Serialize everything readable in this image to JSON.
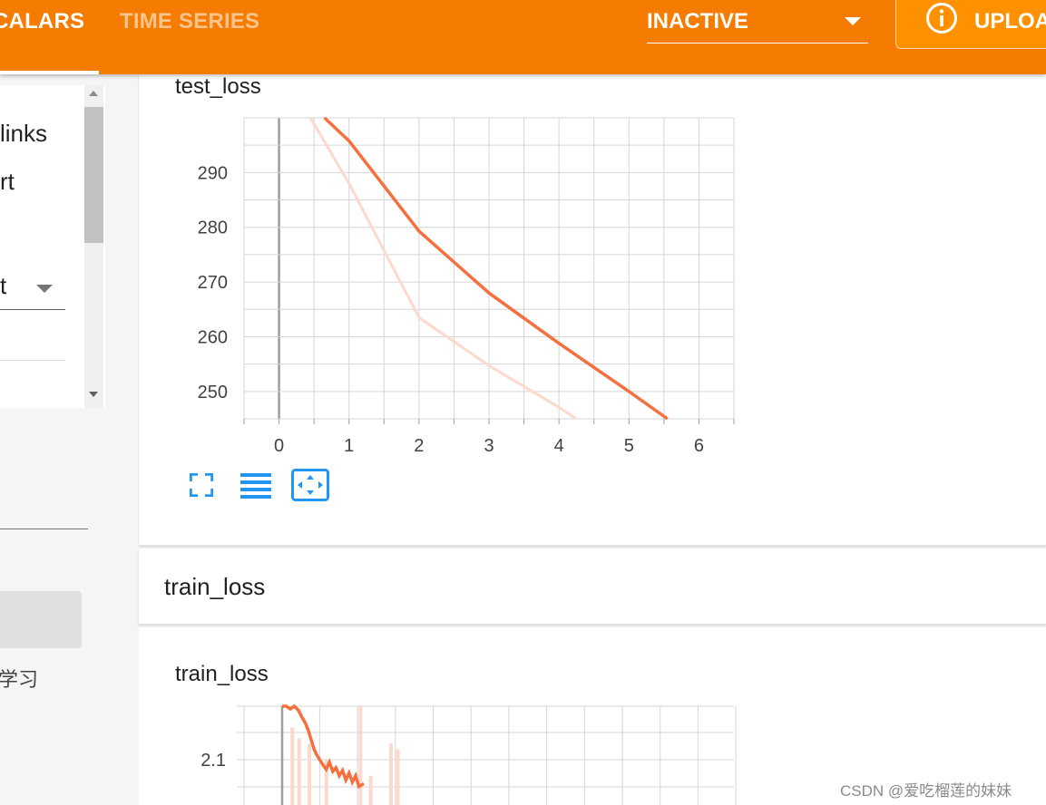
{
  "header": {
    "tabs": [
      {
        "label": "CALARS",
        "active": true
      },
      {
        "label": "TIME SERIES",
        "active": false
      }
    ],
    "inactive_dropdown": {
      "label": "INACTIVE"
    },
    "upload_button": {
      "label": "UPLOA",
      "icon": "info-icon"
    },
    "colors": {
      "bar": "#f57c00",
      "upload": "#ff9100",
      "text": "#ffffff"
    }
  },
  "sidebar": {
    "items": [
      {
        "label": "links"
      },
      {
        "label": "rt"
      }
    ],
    "select_value": "t",
    "caption": "学习"
  },
  "charts": {
    "test_loss": {
      "title": "test_loss"
    },
    "group": {
      "title": "train_loss"
    },
    "train_loss": {
      "title": "train_loss"
    }
  },
  "chart_data": [
    {
      "type": "line",
      "title": "test_loss",
      "xlim": [
        -0.5,
        6.5
      ],
      "ylim": [
        245,
        300
      ],
      "x_ticks": [
        0,
        1,
        2,
        3,
        4,
        5,
        6
      ],
      "y_ticks": [
        250,
        260,
        270,
        280,
        290
      ],
      "grid": true,
      "series": [
        {
          "style": "smoothed",
          "color": "#f4703f",
          "x": [
            0.65,
            1,
            2,
            3,
            4,
            5,
            5.55
          ],
          "y": [
            300,
            295.8,
            279.3,
            268,
            258.8,
            250,
            245
          ]
        },
        {
          "style": "raw",
          "color": "#fcd9cc",
          "x": [
            0.45,
            1,
            2,
            3,
            4,
            4.25
          ],
          "y": [
            300,
            288,
            263.5,
            254.7,
            247.1,
            245
          ]
        }
      ]
    },
    {
      "type": "line",
      "title": "train_loss",
      "ylim": [
        2.05,
        2.2
      ],
      "y_ticks": [
        2.1
      ],
      "grid": true,
      "series": [
        {
          "style": "smoothed",
          "color": "#f4703f",
          "x": [
            0.0,
            0.05,
            0.1,
            0.15,
            0.2,
            0.24,
            0.28,
            0.32,
            0.35,
            0.39,
            0.42,
            0.46,
            0.5,
            0.54,
            0.58,
            0.62,
            0.66,
            0.7,
            0.74,
            0.78,
            0.82,
            0.86,
            0.9,
            0.94,
            1.0
          ],
          "y": [
            2.2,
            2.2,
            2.195,
            2.2,
            2.192,
            2.18,
            2.17,
            2.155,
            2.14,
            2.12,
            2.11,
            2.1,
            2.09,
            2.082,
            2.095,
            2.078,
            2.085,
            2.07,
            2.08,
            2.062,
            2.075,
            2.058,
            2.07,
            2.05,
            2.055
          ]
        },
        {
          "style": "raw",
          "color": "#fcd9cc",
          "x": [
            0.3,
            0.5,
            0.8,
            1.3,
            2.3,
            2.6,
            3.2,
            3.4
          ],
          "y": [
            2.16,
            2.14,
            2.13,
            2.1,
            2.2,
            2.07,
            2.13,
            2.12
          ]
        }
      ]
    }
  ]
}
